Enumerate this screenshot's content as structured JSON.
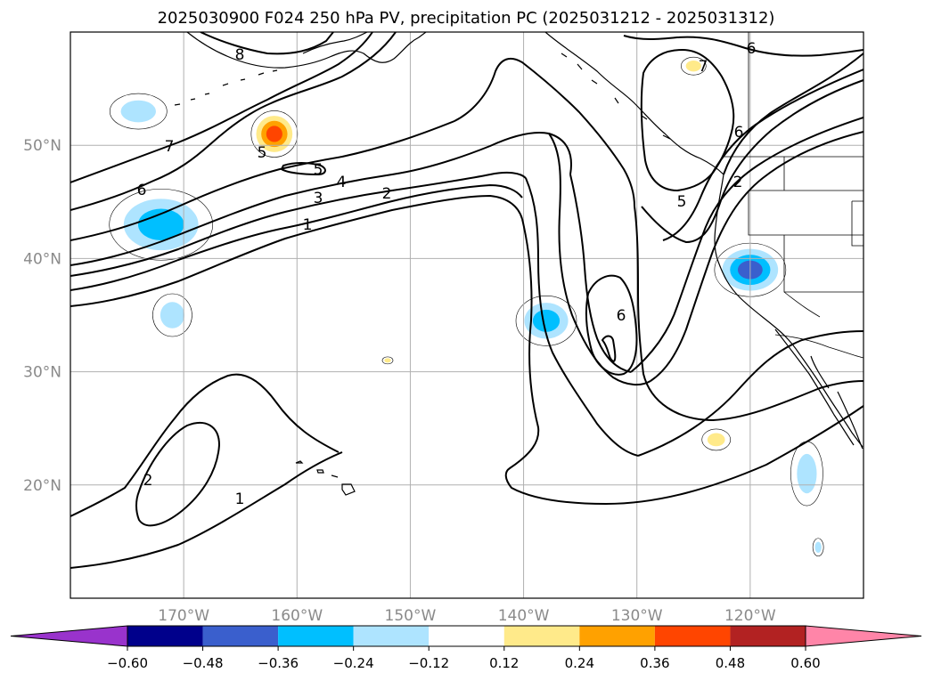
{
  "chart_data": {
    "type": "contour-map",
    "title": "2025030900 F024 250 hPa PV, precipitation PC (2025031212 - 2025031312)",
    "lon_range": [
      -180,
      -110
    ],
    "lat_range": [
      10,
      60
    ],
    "projection": "PlateCarree",
    "grid": true,
    "xticks": [
      "170°W",
      "160°W",
      "150°W",
      "140°W",
      "130°W",
      "120°W"
    ],
    "yticks": [
      "20°N",
      "30°N",
      "40°N",
      "50°N"
    ],
    "pv_contour_labels": [
      "8",
      "7",
      "6",
      "5",
      "5",
      "4",
      "3",
      "2",
      "1",
      "6",
      "5",
      "2",
      "6",
      "6",
      "7",
      "2",
      "1"
    ],
    "colorbar": {
      "ticks": [
        "−0.60",
        "−0.48",
        "−0.36",
        "−0.24",
        "−0.12",
        "0.12",
        "0.24",
        "0.36",
        "0.48",
        "0.60"
      ],
      "colors": [
        "#9933cc",
        "#00008b",
        "#3a5fcd",
        "#00bfff",
        "#aee4ff",
        "#ffffff",
        "#ffea8a",
        "#ffa100",
        "#ff4500",
        "#b22222",
        "#ff85a8"
      ],
      "extend": "both"
    },
    "precipitation_features": [
      {
        "lon": -174,
        "lat": 53,
        "sign": "negative",
        "level": -0.24
      },
      {
        "lon": -162,
        "lat": 51,
        "sign": "positive",
        "level": 0.48
      },
      {
        "lon": -172,
        "lat": 43,
        "sign": "negative",
        "level": -0.36
      },
      {
        "lon": -171,
        "lat": 35,
        "sign": "negative",
        "level": -0.24
      },
      {
        "lon": -152,
        "lat": 31,
        "sign": "positive",
        "level": 0.24
      },
      {
        "lon": -138,
        "lat": 34.5,
        "sign": "negative",
        "level": -0.36
      },
      {
        "lon": -125,
        "lat": 57,
        "sign": "positive",
        "level": 0.24
      },
      {
        "lon": -120,
        "lat": 39,
        "sign": "negative",
        "level": -0.48
      },
      {
        "lon": -123,
        "lat": 24,
        "sign": "positive",
        "level": 0.24
      },
      {
        "lon": -115,
        "lat": 21,
        "sign": "negative",
        "level": -0.24
      },
      {
        "lon": -114,
        "lat": 14.5,
        "sign": "negative",
        "level": -0.24
      }
    ]
  },
  "colors": {
    "gridline": "#b0b0b0",
    "contour": "#000000",
    "tick_label": "#8a8a8a"
  }
}
